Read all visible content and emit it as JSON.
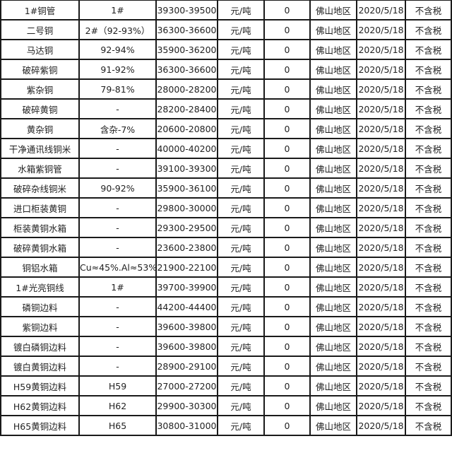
{
  "rows": [
    [
      "1#铜管",
      "1#",
      "39300-39500",
      "元/吨",
      "0",
      "佛山地区",
      "2020/5/18",
      "不含税"
    ],
    [
      "二号铜",
      "2#（92-93%）",
      "36300-36600",
      "元/吨",
      "0",
      "佛山地区",
      "2020/5/18",
      "不含税"
    ],
    [
      "马达铜",
      "92-94%",
      "35900-36200",
      "元/吨",
      "0",
      "佛山地区",
      "2020/5/18",
      "不含税"
    ],
    [
      "破碎紫铜",
      "91-92%",
      "36300-36600",
      "元/吨",
      "0",
      "佛山地区",
      "2020/5/18",
      "不含税"
    ],
    [
      "紫杂铜",
      "79-81%",
      "28000-28200",
      "元/吨",
      "0",
      "佛山地区",
      "2020/5/18",
      "不含税"
    ],
    [
      "破碎黄铜",
      "-",
      "28200-28400",
      "元/吨",
      "0",
      "佛山地区",
      "2020/5/18",
      "不含税"
    ],
    [
      "黄杂铜",
      "含杂-7%",
      "20600-20800",
      "元/吨",
      "0",
      "佛山地区",
      "2020/5/18",
      "不含税"
    ],
    [
      "干净通讯线铜米",
      "-",
      "40000-40200",
      "元/吨",
      "0",
      "佛山地区",
      "2020/5/18",
      "不含税"
    ],
    [
      "水箱紫铜管",
      "-",
      "39100-39300",
      "元/吨",
      "0",
      "佛山地区",
      "2020/5/18",
      "不含税"
    ],
    [
      "破碎杂线铜米",
      "90-92%",
      "35900-36100",
      "元/吨",
      "0",
      "佛山地区",
      "2020/5/18",
      "不含税"
    ],
    [
      "进口柜装黄铜",
      "-",
      "29800-30000",
      "元/吨",
      "0",
      "佛山地区",
      "2020/5/18",
      "不含税"
    ],
    [
      "柜装黄铜水箱",
      "-",
      "29300-29500",
      "元/吨",
      "0",
      "佛山地区",
      "2020/5/18",
      "不含税"
    ],
    [
      "破碎黄铜水箱",
      "-",
      "23600-23800",
      "元/吨",
      "0",
      "佛山地区",
      "2020/5/18",
      "不含税"
    ],
    [
      "铜铝水箱",
      "Cu≈45%.Al≈53%",
      "21900-22100",
      "元/吨",
      "0",
      "佛山地区",
      "2020/5/18",
      "不含税"
    ],
    [
      "1#光亮铜线",
      "1#",
      "39700-39900",
      "元/吨",
      "0",
      "佛山地区",
      "2020/5/18",
      "不含税"
    ],
    [
      "磷铜边料",
      "-",
      "44200-44400",
      "元/吨",
      "0",
      "佛山地区",
      "2020/5/18",
      "不含税"
    ],
    [
      "紫铜边料",
      "-",
      "39600-39800",
      "元/吨",
      "0",
      "佛山地区",
      "2020/5/18",
      "不含税"
    ],
    [
      "镀白磷铜边料",
      "-",
      "39600-39800",
      "元/吨",
      "0",
      "佛山地区",
      "2020/5/18",
      "不含税"
    ],
    [
      "镀白黄铜边料",
      "-",
      "28900-29100",
      "元/吨",
      "0",
      "佛山地区",
      "2020/5/18",
      "不含税"
    ],
    [
      "H59黄铜边料",
      "H59",
      "27000-27200",
      "元/吨",
      "0",
      "佛山地区",
      "2020/5/18",
      "不含税"
    ],
    [
      "H62黄铜边料",
      "H62",
      "29900-30300",
      "元/吨",
      "0",
      "佛山地区",
      "2020/5/18",
      "不含税"
    ],
    [
      "H65黄铜边料",
      "H65",
      "30800-31000",
      "元/吨",
      "0",
      "佛山地区",
      "2020/5/18",
      "不含税"
    ]
  ]
}
